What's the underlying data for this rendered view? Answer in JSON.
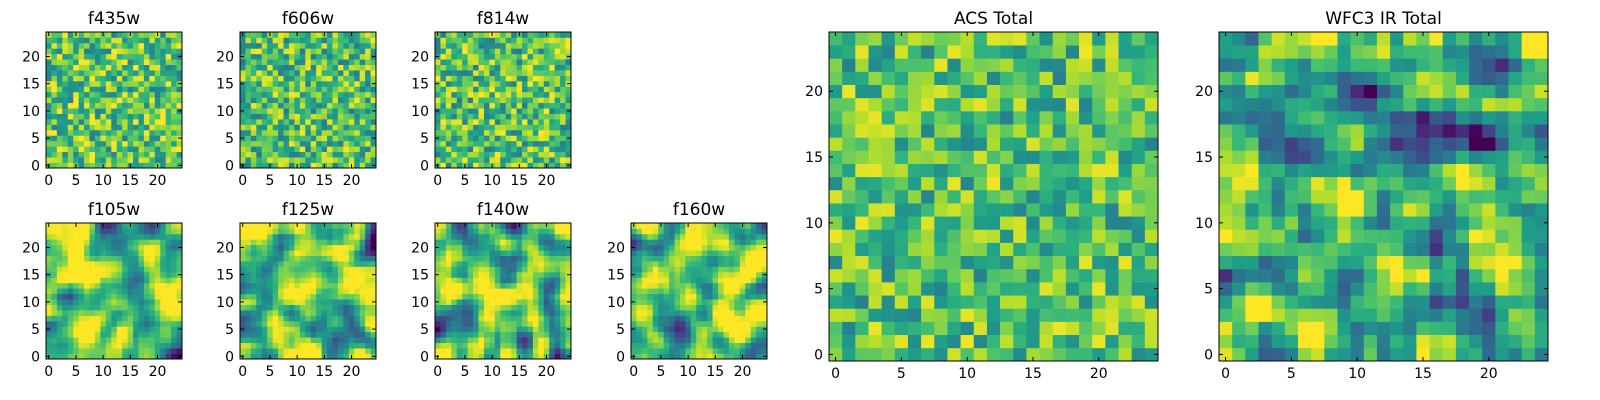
{
  "chart_data": [
    {
      "type": "heatmap",
      "title": "f435w",
      "grid": [
        25,
        25
      ],
      "xticks": [
        0,
        5,
        10,
        15,
        20
      ],
      "yticks": [
        0,
        5,
        10,
        15,
        20
      ],
      "xlim": [
        0,
        25
      ],
      "ylim": [
        0,
        25
      ],
      "colormap": "viridis",
      "seed": 11,
      "smooth": 0,
      "base": 0.72,
      "contrast": 1.0
    },
    {
      "type": "heatmap",
      "title": "f606w",
      "grid": [
        25,
        25
      ],
      "xticks": [
        0,
        5,
        10,
        15,
        20
      ],
      "yticks": [
        0,
        5,
        10,
        15,
        20
      ],
      "xlim": [
        0,
        25
      ],
      "ylim": [
        0,
        25
      ],
      "colormap": "viridis",
      "seed": 23,
      "smooth": 0,
      "base": 0.7,
      "contrast": 1.0
    },
    {
      "type": "heatmap",
      "title": "f814w",
      "grid": [
        25,
        25
      ],
      "xticks": [
        0,
        5,
        10,
        15,
        20
      ],
      "yticks": [
        0,
        5,
        10,
        15,
        20
      ],
      "xlim": [
        0,
        25
      ],
      "ylim": [
        0,
        25
      ],
      "colormap": "viridis",
      "seed": 37,
      "smooth": 0,
      "base": 0.72,
      "contrast": 1.0
    },
    {
      "type": "heatmap",
      "title": "f105w",
      "grid": [
        25,
        25
      ],
      "xticks": [
        0,
        5,
        10,
        15,
        20
      ],
      "yticks": [
        0,
        5,
        10,
        15,
        20
      ],
      "xlim": [
        0,
        25
      ],
      "ylim": [
        0,
        25
      ],
      "colormap": "viridis",
      "seed": 41,
      "smooth": 2,
      "base": 0.74,
      "contrast": 1.4
    },
    {
      "type": "heatmap",
      "title": "f125w",
      "grid": [
        25,
        25
      ],
      "xticks": [
        0,
        5,
        10,
        15,
        20
      ],
      "yticks": [
        0,
        5,
        10,
        15,
        20
      ],
      "xlim": [
        0,
        25
      ],
      "ylim": [
        0,
        25
      ],
      "colormap": "viridis",
      "seed": 53,
      "smooth": 2,
      "base": 0.72,
      "contrast": 1.4
    },
    {
      "type": "heatmap",
      "title": "f140w",
      "grid": [
        25,
        25
      ],
      "xticks": [
        0,
        5,
        10,
        15,
        20
      ],
      "yticks": [
        0,
        5,
        10,
        15,
        20
      ],
      "xlim": [
        0,
        25
      ],
      "ylim": [
        0,
        25
      ],
      "colormap": "viridis",
      "seed": 67,
      "smooth": 2,
      "base": 0.7,
      "contrast": 1.4
    },
    {
      "type": "heatmap",
      "title": "f160w",
      "grid": [
        25,
        25
      ],
      "xticks": [
        0,
        5,
        10,
        15,
        20
      ],
      "yticks": [
        0,
        5,
        10,
        15,
        20
      ],
      "xlim": [
        0,
        25
      ],
      "ylim": [
        0,
        25
      ],
      "colormap": "viridis",
      "seed": 79,
      "smooth": 2,
      "base": 0.74,
      "contrast": 1.4
    },
    {
      "type": "heatmap",
      "title": "ACS Total",
      "grid": [
        25,
        25
      ],
      "xticks": [
        0,
        5,
        10,
        15,
        20
      ],
      "yticks": [
        0,
        5,
        10,
        15,
        20
      ],
      "xlim": [
        0,
        25
      ],
      "ylim": [
        0,
        25
      ],
      "colormap": "viridis",
      "seed": 83,
      "smooth": 0,
      "base": 0.72,
      "contrast": 0.9
    },
    {
      "type": "heatmap",
      "title": "WFC3 IR Total",
      "grid": [
        25,
        25
      ],
      "xticks": [
        0,
        5,
        10,
        15,
        20
      ],
      "yticks": [
        0,
        5,
        10,
        15,
        20
      ],
      "xlim": [
        0,
        25
      ],
      "ylim": [
        0,
        25
      ],
      "colormap": "viridis",
      "seed": 97,
      "smooth": 1,
      "base": 0.62,
      "contrast": 1.3
    }
  ]
}
